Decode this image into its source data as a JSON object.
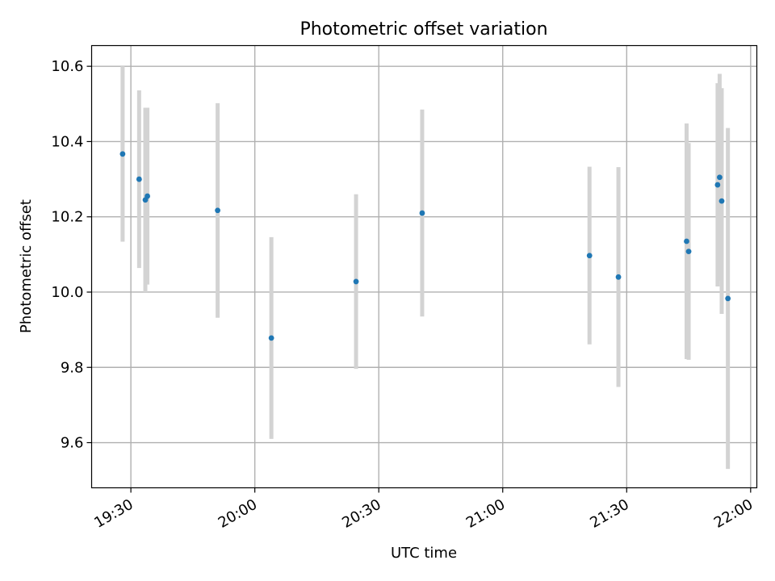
{
  "chart_data": {
    "type": "scatter",
    "title": "Photometric offset variation",
    "xlabel": "UTC time",
    "ylabel": "Photometric offset",
    "x_ticks": [
      "19:30",
      "20:00",
      "20:30",
      "21:00",
      "21:30",
      "22:00"
    ],
    "y_ticks": [
      "9.6",
      "9.8",
      "10.0",
      "10.2",
      "10.4",
      "10.6"
    ],
    "xlim": [
      "19:20:30",
      "22:01:30"
    ],
    "ylim": [
      9.48,
      10.655
    ],
    "grid": true,
    "colors": {
      "point": "#1f77b4",
      "errorbar": "#d3d3d3",
      "grid": "#b0b0b0"
    },
    "series": [
      {
        "points": [
          {
            "x": "19:28",
            "y": 10.367,
            "err": 0.233
          },
          {
            "x": "19:32",
            "y": 10.3,
            "err": 0.236
          },
          {
            "x": "19:33:30",
            "y": 10.245,
            "err": 0.245
          },
          {
            "x": "19:34",
            "y": 10.255,
            "err": 0.235
          },
          {
            "x": "19:51",
            "y": 10.217,
            "err": 0.285
          },
          {
            "x": "20:04",
            "y": 9.878,
            "err": 0.268
          },
          {
            "x": "20:24:30",
            "y": 10.028,
            "err": 0.232
          },
          {
            "x": "20:40:30",
            "y": 10.21,
            "err": 0.275
          },
          {
            "x": "21:21",
            "y": 10.097,
            "err": 0.236
          },
          {
            "x": "21:28",
            "y": 10.04,
            "err": 0.292
          },
          {
            "x": "21:44:30",
            "y": 10.135,
            "err": 0.313
          },
          {
            "x": "21:45",
            "y": 10.108,
            "err": 0.288
          },
          {
            "x": "21:52",
            "y": 10.285,
            "err": 0.27
          },
          {
            "x": "21:52:30",
            "y": 10.305,
            "err": 0.275
          },
          {
            "x": "21:53",
            "y": 10.242,
            "err": 0.3
          },
          {
            "x": "21:54:30",
            "y": 9.983,
            "err": 0.453
          }
        ]
      }
    ]
  }
}
